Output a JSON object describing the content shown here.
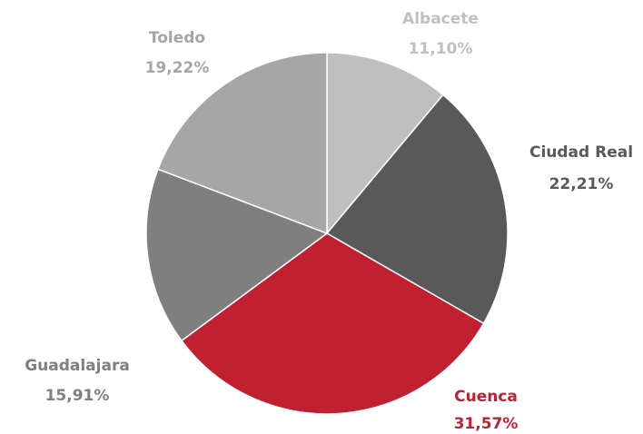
{
  "chart_data": {
    "type": "pie",
    "categories": [
      "Albacete",
      "Ciudad Real",
      "Cuenca",
      "Guadalajara",
      "Toledo"
    ],
    "values": [
      11.1,
      22.21,
      31.57,
      15.91,
      19.22
    ],
    "value_labels": [
      "11,10%",
      "22,21%",
      "31,57%",
      "15,91%",
      "19,22%"
    ],
    "colors": [
      "#bfbfbf",
      "#595959",
      "#c0202f",
      "#7f7f7f",
      "#a6a6a6"
    ]
  }
}
